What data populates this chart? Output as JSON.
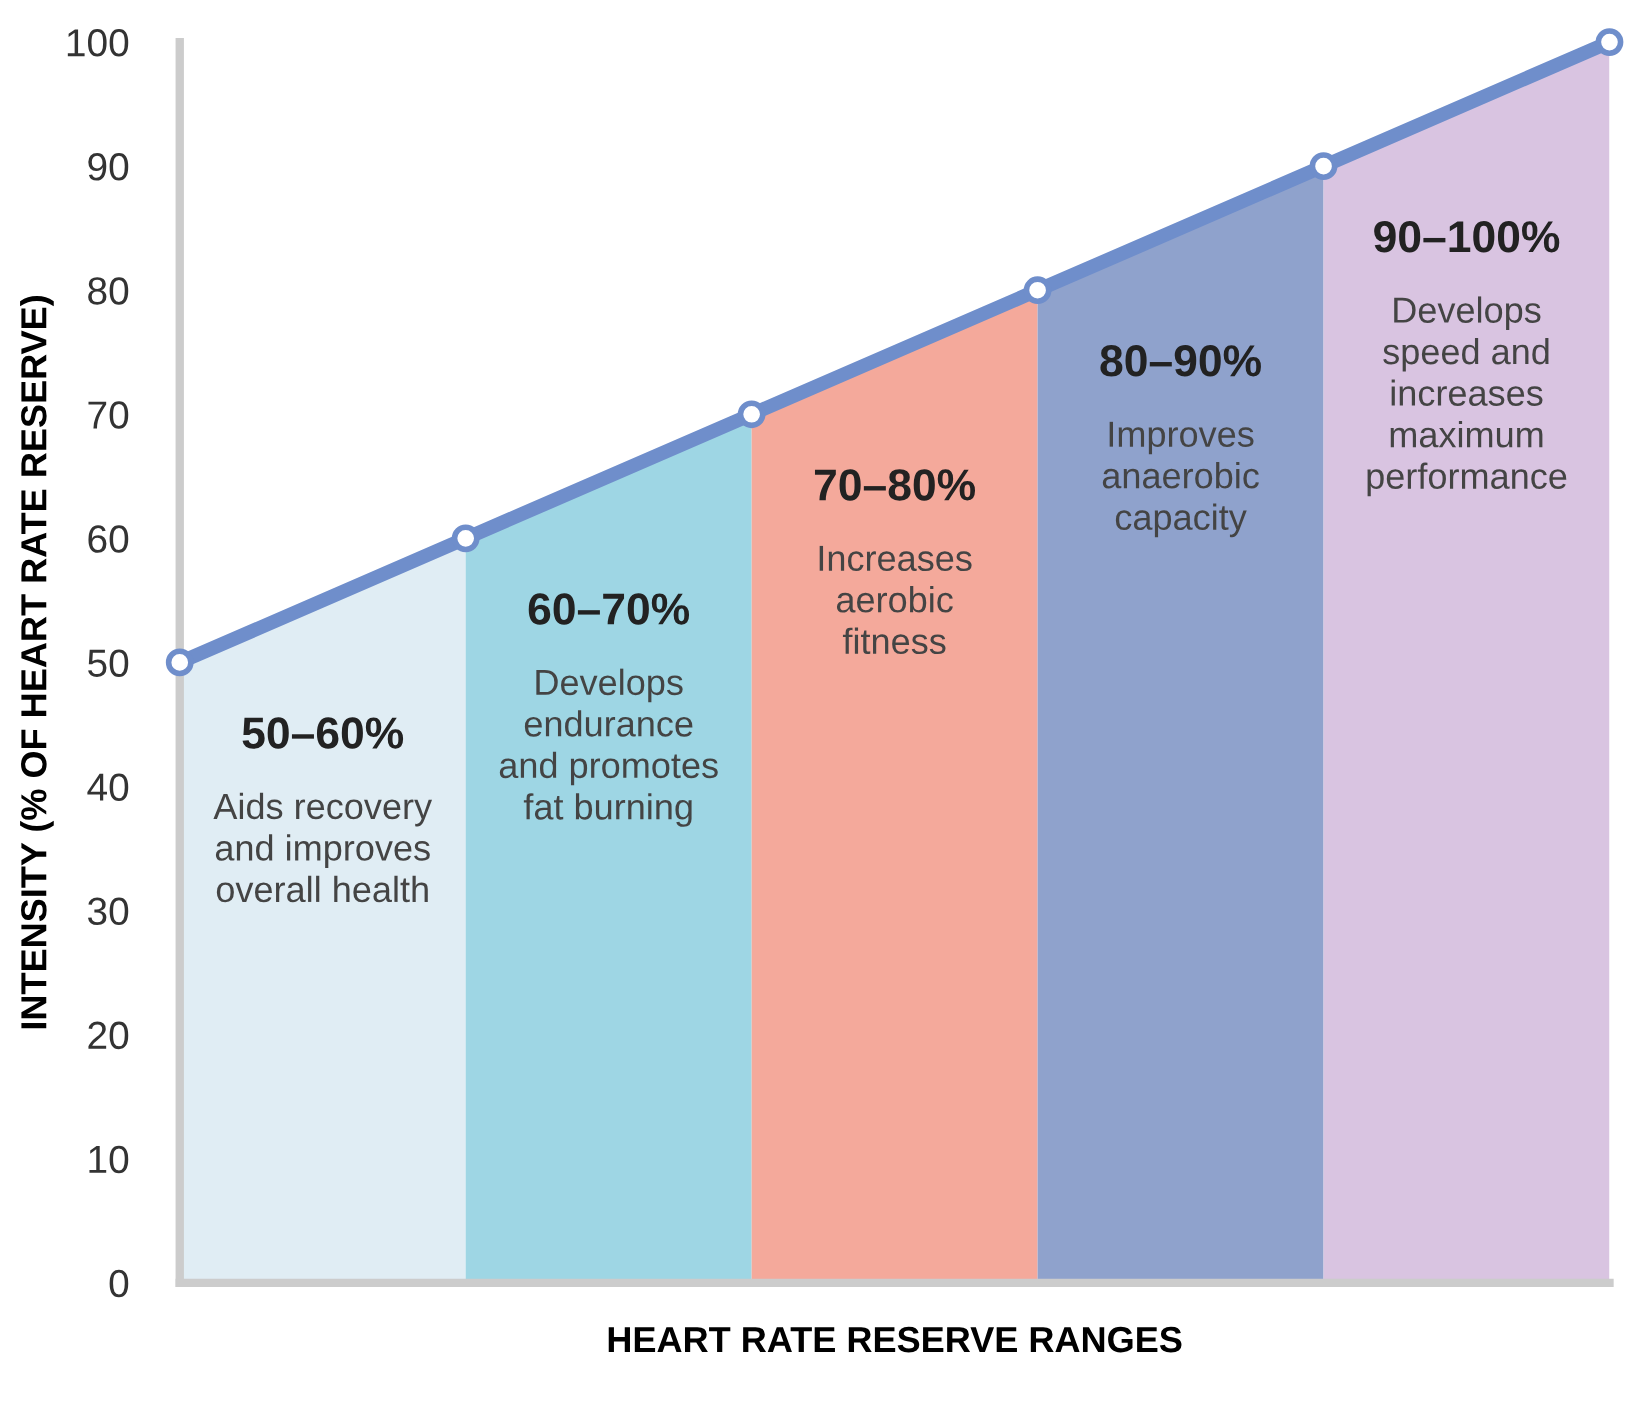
{
  "chart_data": {
    "type": "area",
    "xlabel": "HEART RATE RESERVE RANGES",
    "ylabel": "INTENSITY (% OF HEART RATE RESERVE)",
    "categories": [
      null,
      null,
      null,
      null,
      null,
      null
    ],
    "series": [
      {
        "color": "#e0edf4",
        "values": [
          50,
          60,
          null,
          null,
          null,
          null
        ]
      },
      {
        "color": "#9ed6e4",
        "values": [
          null,
          60,
          70,
          null,
          null,
          null
        ]
      },
      {
        "color": "#f4a99b",
        "values": [
          null,
          null,
          70,
          80,
          null,
          null
        ]
      },
      {
        "color": "#8fa2cc",
        "values": [
          null,
          null,
          null,
          80,
          90,
          null
        ]
      },
      {
        "color": "#d9c4e1",
        "values": [
          null,
          null,
          null,
          null,
          90,
          100
        ]
      },
      {
        "type": "line",
        "marker": "circle",
        "color": "#6f8ecb",
        "values": [
          50,
          60,
          70,
          80,
          90,
          100
        ]
      }
    ],
    "ylim": [
      0,
      100
    ],
    "yticks": [
      0,
      10,
      20,
      30,
      40,
      50,
      60,
      70,
      80,
      90,
      100
    ],
    "grid": false,
    "annotations": [
      "50–60%",
      "Aids recovery\nand improves\noverall health",
      "60–70%",
      "Develops\nendurance\nand promotes\nfat burning",
      "70–80%",
      "Increases\naerobic\nfitness",
      "80–90%",
      "Improves\nanaerobic\ncapacity",
      "90–100%",
      "Develops\nspeed and\nincreases\nmaximum\nperformance"
    ]
  }
}
